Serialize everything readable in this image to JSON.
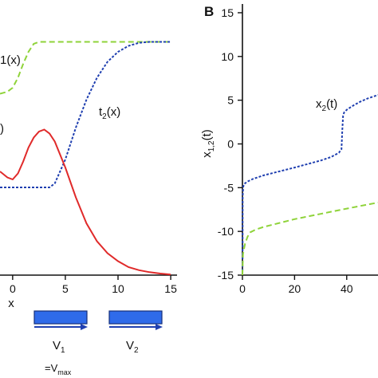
{
  "panel_b_label": "B",
  "chart_data": [
    {
      "panel": "A (partial)",
      "type": "line",
      "xlabel": "x",
      "ylabel": "",
      "xlim": [
        -1.2,
        15.6
      ],
      "ylim": [
        0,
        1.38
      ],
      "xticks": [
        0,
        5,
        10,
        15
      ],
      "xtick_labels": [
        "0",
        "5",
        "10",
        "15"
      ],
      "series": [
        {
          "name": "t1(x)",
          "color": "#8fd33a",
          "style": "dashed",
          "x": [
            -1.2,
            -0.5,
            0,
            0.5,
            1,
            1.5,
            2,
            2.5,
            3,
            3.5,
            4,
            5,
            6,
            8,
            10,
            12,
            15
          ],
          "y": [
            0.91,
            0.92,
            0.94,
            0.99,
            1.06,
            1.12,
            1.16,
            1.17,
            1.17,
            1.17,
            1.17,
            1.17,
            1.17,
            1.17,
            1.17,
            1.17,
            1.17
          ]
        },
        {
          "name": "t2(x)",
          "color": "#1f3fb0",
          "style": "dotted",
          "x": [
            -1.2,
            0,
            2,
            3.5,
            4,
            5,
            6,
            7,
            8,
            9,
            10,
            11,
            12,
            13,
            14,
            15
          ],
          "y": [
            0.44,
            0.44,
            0.44,
            0.44,
            0.46,
            0.58,
            0.74,
            0.88,
            0.99,
            1.07,
            1.12,
            1.15,
            1.165,
            1.17,
            1.17,
            1.17
          ]
        },
        {
          "name": "",
          "color": "#e02a2a",
          "style": "solid",
          "x": [
            -1.2,
            -0.5,
            0,
            0.5,
            1,
            1.5,
            2,
            2.5,
            3,
            3.5,
            4,
            5,
            6,
            7,
            8,
            9,
            10,
            11,
            12,
            13,
            14,
            15
          ],
          "y": [
            0.52,
            0.49,
            0.48,
            0.51,
            0.57,
            0.64,
            0.69,
            0.72,
            0.73,
            0.71,
            0.67,
            0.54,
            0.39,
            0.26,
            0.17,
            0.11,
            0.07,
            0.04,
            0.025,
            0.015,
            0.008,
            0.003
          ]
        }
      ],
      "annotations": [
        {
          "text": "(x)",
          "sub": "1",
          "prefix": "t",
          "visible_part": "1(x)"
        },
        {
          "text": "t",
          "sub": "2",
          "suffix": "(x)"
        },
        {
          "text": ")"
        }
      ]
    },
    {
      "panel": "B",
      "type": "line",
      "xlabel": "t",
      "ylabel": "x1,2(t)",
      "xlim": [
        0,
        52
      ],
      "ylim": [
        -15,
        16
      ],
      "xticks": [
        0,
        20,
        40
      ],
      "xtick_labels": [
        "0",
        "20",
        "40"
      ],
      "yticks": [
        -15,
        -10,
        -5,
        0,
        5,
        10,
        15
      ],
      "ytick_labels": [
        "-15",
        "-10",
        "-5",
        "0",
        "5",
        "10",
        "15"
      ],
      "series": [
        {
          "name": "x2(t)",
          "color": "#1f3fb0",
          "style": "dotted",
          "x": [
            0,
            0.05,
            0.1,
            0.3,
            0.6,
            1,
            2,
            4,
            8,
            12,
            16,
            20,
            25,
            30,
            34,
            37,
            38,
            38.3,
            38.6,
            39,
            40,
            42,
            45,
            48,
            52
          ],
          "y": [
            -15,
            -13,
            -6,
            -4.9,
            -4.6,
            -4.5,
            -4.3,
            -4.0,
            -3.6,
            -3.3,
            -3.0,
            -2.7,
            -2.3,
            -1.9,
            -1.5,
            -1.0,
            -0.6,
            1.5,
            3.2,
            3.6,
            3.9,
            4.3,
            4.8,
            5.2,
            5.6
          ]
        },
        {
          "name": "",
          "color": "#8fd33a",
          "style": "dashed",
          "x": [
            0,
            0.2,
            0.6,
            1,
            2,
            3,
            5,
            8,
            12,
            16,
            20,
            25,
            30,
            35,
            40,
            45,
            52
          ],
          "y": [
            -15,
            -12.6,
            -12.0,
            -11.4,
            -10.6,
            -10.1,
            -9.8,
            -9.5,
            -9.2,
            -8.9,
            -8.6,
            -8.3,
            -8.0,
            -7.7,
            -7.4,
            -7.1,
            -6.7
          ]
        }
      ]
    }
  ],
  "velocity_legend": {
    "items": [
      {
        "label": "V",
        "sub": "1"
      },
      {
        "label": "V",
        "sub": "2"
      }
    ],
    "footnote_prefix": "=V",
    "footnote_sub": "max"
  }
}
